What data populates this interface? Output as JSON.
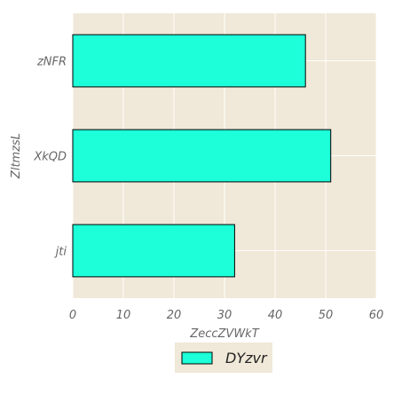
{
  "chart_data": {
    "type": "bar",
    "orientation": "horizontal",
    "categories": [
      "jti",
      "XkQD",
      "zNFR"
    ],
    "series": [
      {
        "name": "DYzvr",
        "values": [
          32,
          51,
          46
        ]
      }
    ],
    "xlabel": "ZeccZVWkT",
    "ylabel": "ZltmzsL",
    "xlim": [
      0,
      60
    ],
    "xticks": [
      0,
      10,
      20,
      30,
      40,
      50,
      60
    ],
    "grid": true,
    "legend_position": "bottom"
  },
  "colors": {
    "plot_background": "#f0e8d8",
    "grid": "#ffffff",
    "bar_fill": "#1cffd9",
    "bar_edge": "#000000",
    "text": "#666666"
  }
}
